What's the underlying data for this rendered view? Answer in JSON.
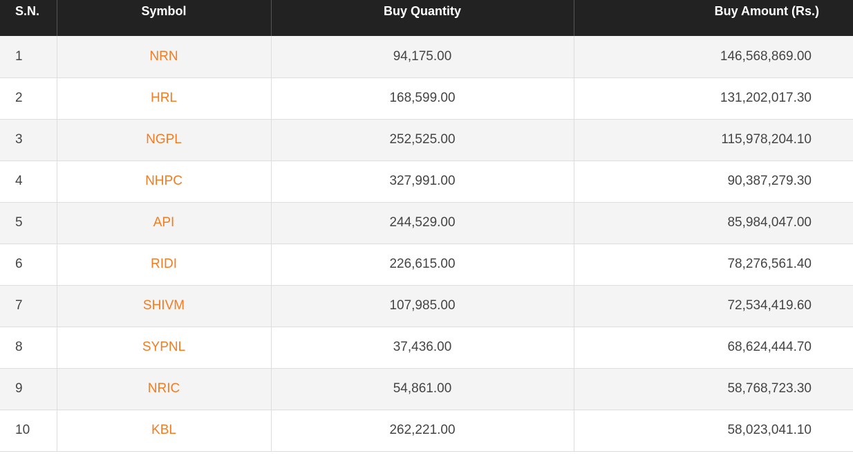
{
  "table": {
    "headers": {
      "sn": "S.N.",
      "symbol": "Symbol",
      "buy_quantity": "Buy Quantity",
      "buy_amount": "Buy Amount (Rs.)"
    },
    "rows": [
      {
        "sn": "1",
        "symbol": "NRN",
        "buy_quantity": "94,175.00",
        "buy_amount": "146,568,869.00"
      },
      {
        "sn": "2",
        "symbol": "HRL",
        "buy_quantity": "168,599.00",
        "buy_amount": "131,202,017.30"
      },
      {
        "sn": "3",
        "symbol": "NGPL",
        "buy_quantity": "252,525.00",
        "buy_amount": "115,978,204.10"
      },
      {
        "sn": "4",
        "symbol": "NHPC",
        "buy_quantity": "327,991.00",
        "buy_amount": "90,387,279.30"
      },
      {
        "sn": "5",
        "symbol": "API",
        "buy_quantity": "244,529.00",
        "buy_amount": "85,984,047.00"
      },
      {
        "sn": "6",
        "symbol": "RIDI",
        "buy_quantity": "226,615.00",
        "buy_amount": "78,276,561.40"
      },
      {
        "sn": "7",
        "symbol": "SHIVM",
        "buy_quantity": "107,985.00",
        "buy_amount": "72,534,419.60"
      },
      {
        "sn": "8",
        "symbol": "SYPNL",
        "buy_quantity": "37,436.00",
        "buy_amount": "68,624,444.70"
      },
      {
        "sn": "9",
        "symbol": "NRIC",
        "buy_quantity": "54,861.00",
        "buy_amount": "58,768,723.30"
      },
      {
        "sn": "10",
        "symbol": "KBL",
        "buy_quantity": "262,221.00",
        "buy_amount": "58,023,041.10"
      }
    ]
  },
  "colors": {
    "header_bg": "#222222",
    "header_text": "#ffffff",
    "symbol_link": "#f47c20",
    "row_alt_bg": "#f4f4f4",
    "cell_text": "#444444"
  }
}
